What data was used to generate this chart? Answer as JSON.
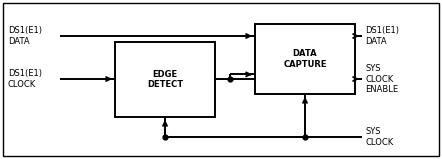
{
  "fig_width": 4.42,
  "fig_height": 1.59,
  "dpi": 100,
  "bg_color": "#ffffff",
  "border_color": "#000000",
  "line_color": "#000000",
  "label_ds1_data_in": "DS1(E1)\nDATA",
  "label_ds1_clock_in": "DS1(E1)\nCLOCK",
  "label_edge_detect": "EDGE\nDETECT",
  "label_data_capture": "DATA\nCAPTURE",
  "label_ds1_data_out": "DS1(E1)\nDATA",
  "label_sys_clock_enable": "SYS\nCLOCK\nENABLE",
  "label_sys_clock": "SYS\nCLOCK",
  "font_size": 6.0,
  "lw": 1.4,
  "arrow_scale": 7
}
